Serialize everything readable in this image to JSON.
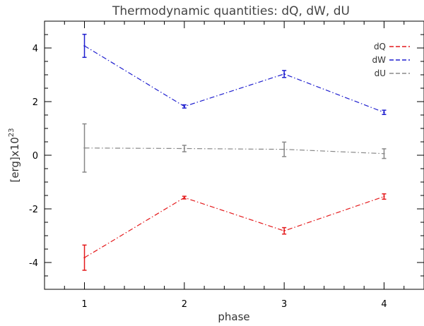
{
  "chart_data": {
    "type": "line",
    "title": "Thermodynamic quantities: dQ, dW, dU",
    "xlabel": "phase",
    "ylabel_main": "[erg]x10",
    "ylabel_exp": "23",
    "x": [
      1,
      2,
      3,
      4
    ],
    "xlim": [
      0.6,
      4.4
    ],
    "ylim": [
      -5,
      5
    ],
    "xticks": [
      1,
      2,
      3,
      4
    ],
    "yticks": [
      -4,
      -2,
      0,
      2,
      4
    ],
    "grid": false,
    "legend_position": "top-right",
    "series": [
      {
        "name": "dQ",
        "color": "#e41a1c",
        "values": [
          -3.82,
          -1.58,
          -2.82,
          -1.54
        ],
        "errors": [
          0.47,
          0.05,
          0.12,
          0.1
        ]
      },
      {
        "name": "dW",
        "color": "#1f1fcf",
        "values": [
          4.08,
          1.82,
          3.03,
          1.6
        ],
        "errors": [
          0.43,
          0.06,
          0.13,
          0.08
        ]
      },
      {
        "name": "dU",
        "color": "#888888",
        "values": [
          0.27,
          0.25,
          0.22,
          0.06
        ],
        "errors": [
          0.9,
          0.12,
          0.27,
          0.18
        ]
      }
    ]
  }
}
